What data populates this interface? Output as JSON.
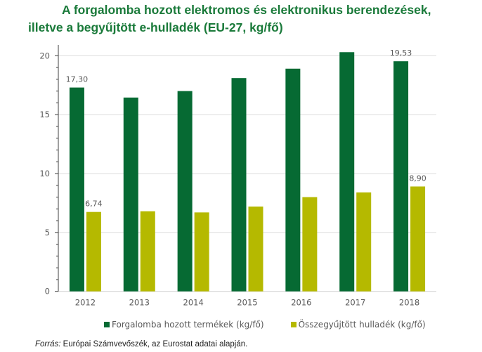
{
  "chart_data": {
    "type": "bar",
    "title_line1": "A forgalomba hozott elektromos és elektronikus berendezések,",
    "title_line2": "illetve a begyűjtött e-hulladék (EU-27, kg/fő)",
    "xlabel": "",
    "ylabel": "",
    "categories": [
      "2012",
      "2013",
      "2014",
      "2015",
      "2016",
      "2017",
      "2018"
    ],
    "ylim": [
      0,
      22
    ],
    "yticks": [
      "0",
      "5",
      "10",
      "15",
      "20"
    ],
    "ytick_values": [
      0,
      5,
      10,
      15,
      20
    ],
    "grid": true,
    "legend_position": "bottom",
    "series": [
      {
        "name": "Forgalomba hozott termékek (kg/fő)",
        "color": "#066a33",
        "values": [
          17.3,
          16.45,
          17.0,
          18.1,
          18.9,
          20.3,
          19.53
        ],
        "labels": [
          "17,30",
          "",
          "",
          "",
          "",
          "",
          "19,53"
        ]
      },
      {
        "name": "Összegyűjtött hulladék (kg/fő)",
        "color": "#b5b900",
        "values": [
          6.74,
          6.8,
          6.7,
          7.2,
          8.0,
          8.4,
          8.9
        ],
        "labels": [
          "6,74",
          "",
          "",
          "",
          "",
          "",
          "8,90"
        ]
      }
    ]
  },
  "source": {
    "prefix": "Forrás:",
    "text": " Európai Számvevőszék, az Eurostat adatai alapján."
  }
}
